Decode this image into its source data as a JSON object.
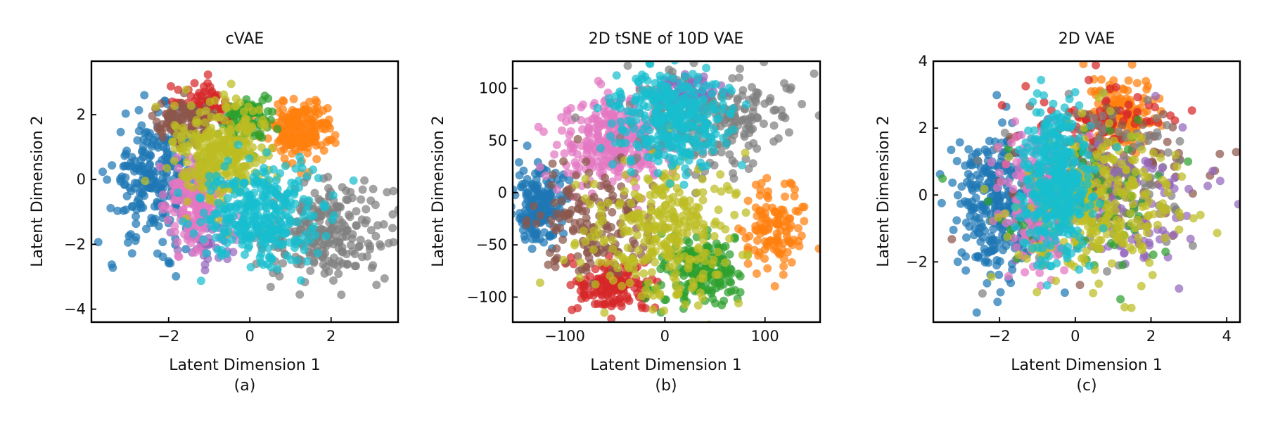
{
  "chart_data": [
    {
      "type": "scatter",
      "title": "cVAE",
      "xlabel": "Latent Dimension 1",
      "ylabel": "Latent Dimension 2",
      "caption": "(a)",
      "xlim": [
        -3.9,
        3.65
      ],
      "ylim": [
        -4.4,
        3.65
      ],
      "xticks": [
        -2,
        0,
        2
      ],
      "yticks": [
        -4,
        -2,
        0,
        2
      ],
      "xtick_labels": [
        "−2",
        "0",
        "2"
      ],
      "ytick_labels": [
        "−4",
        "−2",
        "0",
        "2"
      ],
      "grid": false,
      "series": [
        {
          "color": "#1f77b4",
          "cx": -2.3,
          "cy": 0.0,
          "sx": 0.55,
          "sy": 0.95,
          "n": 260
        },
        {
          "color": "#7f7f7f",
          "cx": 1.9,
          "cy": -1.6,
          "sx": 0.75,
          "sy": 0.75,
          "n": 240
        },
        {
          "color": "#ff7f0e",
          "cx": 1.25,
          "cy": 1.55,
          "sx": 0.4,
          "sy": 0.45,
          "n": 200
        },
        {
          "color": "#2ca02c",
          "cx": 0.0,
          "cy": 1.9,
          "sx": 0.35,
          "sy": 0.35,
          "n": 90
        },
        {
          "color": "#d62728",
          "cx": -1.2,
          "cy": 2.3,
          "sx": 0.3,
          "sy": 0.35,
          "n": 70
        },
        {
          "color": "#8c564b",
          "cx": -1.6,
          "cy": 1.8,
          "sx": 0.35,
          "sy": 0.35,
          "n": 90
        },
        {
          "color": "#9467bd",
          "cx": -1.0,
          "cy": -1.9,
          "sx": 0.35,
          "sy": 0.3,
          "n": 40
        },
        {
          "color": "#e377c2",
          "cx": -1.3,
          "cy": -0.8,
          "sx": 0.4,
          "sy": 0.7,
          "n": 180
        },
        {
          "color": "#bcbd22",
          "cx": -0.7,
          "cy": 0.9,
          "sx": 0.6,
          "sy": 0.8,
          "n": 300
        },
        {
          "color": "#17becf",
          "cx": 0.2,
          "cy": -1.1,
          "sx": 0.75,
          "sy": 0.75,
          "n": 330
        }
      ]
    },
    {
      "type": "scatter",
      "title": "2D tSNE of 10D VAE",
      "xlabel": "Latent Dimension 1",
      "ylabel": "Latent Dimension 2",
      "caption": "(b)",
      "xlim": [
        -152,
        155
      ],
      "ylim": [
        -124,
        126
      ],
      "xticks": [
        -100,
        0,
        100
      ],
      "yticks": [
        -100,
        -50,
        0,
        50,
        100
      ],
      "xtick_labels": [
        "−100",
        "0",
        "100"
      ],
      "ytick_labels": [
        "−100",
        "−50",
        "0",
        "50",
        "100"
      ],
      "grid": false,
      "series": [
        {
          "color": "#1f77b4",
          "cx": -125,
          "cy": -12,
          "sx": 12,
          "sy": 18,
          "n": 180
        },
        {
          "color": "#e377c2",
          "cx": -50,
          "cy": 50,
          "sx": 28,
          "sy": 22,
          "n": 300
        },
        {
          "color": "#7f7f7f",
          "cx": 45,
          "cy": 70,
          "sx": 40,
          "sy": 25,
          "n": 250
        },
        {
          "color": "#9467bd",
          "cx": 25,
          "cy": 95,
          "sx": 20,
          "sy": 8,
          "n": 60
        },
        {
          "color": "#d62728",
          "cx": -55,
          "cy": -90,
          "sx": 18,
          "sy": 12,
          "n": 150
        },
        {
          "color": "#2ca02c",
          "cx": 35,
          "cy": -75,
          "sx": 20,
          "sy": 18,
          "n": 170
        },
        {
          "color": "#8c564b",
          "cx": -70,
          "cy": -30,
          "sx": 30,
          "sy": 28,
          "n": 160
        },
        {
          "color": "#ff7f0e",
          "cx": 110,
          "cy": -35,
          "sx": 15,
          "sy": 20,
          "n": 120
        },
        {
          "color": "#bcbd22",
          "cx": -5,
          "cy": -40,
          "sx": 40,
          "sy": 30,
          "n": 300
        },
        {
          "color": "#17becf",
          "cx": 5,
          "cy": 75,
          "sx": 28,
          "sy": 25,
          "n": 330
        }
      ]
    },
    {
      "type": "scatter",
      "title": "2D VAE",
      "xlabel": "Latent Dimension 1",
      "ylabel": "Latent Dimension 2",
      "caption": "(c)",
      "xlim": [
        -3.75,
        4.35
      ],
      "ylim": [
        -3.8,
        4.0
      ],
      "xticks": [
        -2,
        0,
        2,
        4
      ],
      "yticks": [
        -2,
        0,
        2,
        4
      ],
      "xtick_labels": [
        "−2",
        "0",
        "2",
        "4"
      ],
      "ytick_labels": [
        "−2",
        "0",
        "2",
        "4"
      ],
      "grid": false,
      "series": [
        {
          "color": "#1f77b4",
          "cx": -2.05,
          "cy": -0.3,
          "sx": 0.55,
          "sy": 1.1,
          "n": 300
        },
        {
          "color": "#ff7f0e",
          "cx": 1.2,
          "cy": 2.3,
          "sx": 0.5,
          "sy": 0.6,
          "n": 140
        },
        {
          "color": "#d62728",
          "cx": 0.7,
          "cy": 2.2,
          "sx": 0.9,
          "sy": 0.6,
          "n": 80
        },
        {
          "color": "#8c564b",
          "cx": 0.8,
          "cy": 0.6,
          "sx": 1.2,
          "sy": 1.0,
          "n": 120
        },
        {
          "color": "#7f7f7f",
          "cx": 0.6,
          "cy": 0.5,
          "sx": 1.4,
          "sy": 1.2,
          "n": 140
        },
        {
          "color": "#9467bd",
          "cx": 1.4,
          "cy": -0.4,
          "sx": 1.1,
          "sy": 1.0,
          "n": 110
        },
        {
          "color": "#2ca02c",
          "cx": 0.2,
          "cy": -0.2,
          "sx": 1.1,
          "sy": 1.2,
          "n": 90
        },
        {
          "color": "#e377c2",
          "cx": -1.0,
          "cy": 0.0,
          "sx": 0.45,
          "sy": 1.1,
          "n": 200
        },
        {
          "color": "#bcbd22",
          "cx": 0.6,
          "cy": -0.3,
          "sx": 1.1,
          "sy": 1.1,
          "n": 300
        },
        {
          "color": "#17becf",
          "cx": -0.5,
          "cy": 0.3,
          "sx": 0.45,
          "sy": 1.2,
          "n": 380
        }
      ]
    }
  ]
}
